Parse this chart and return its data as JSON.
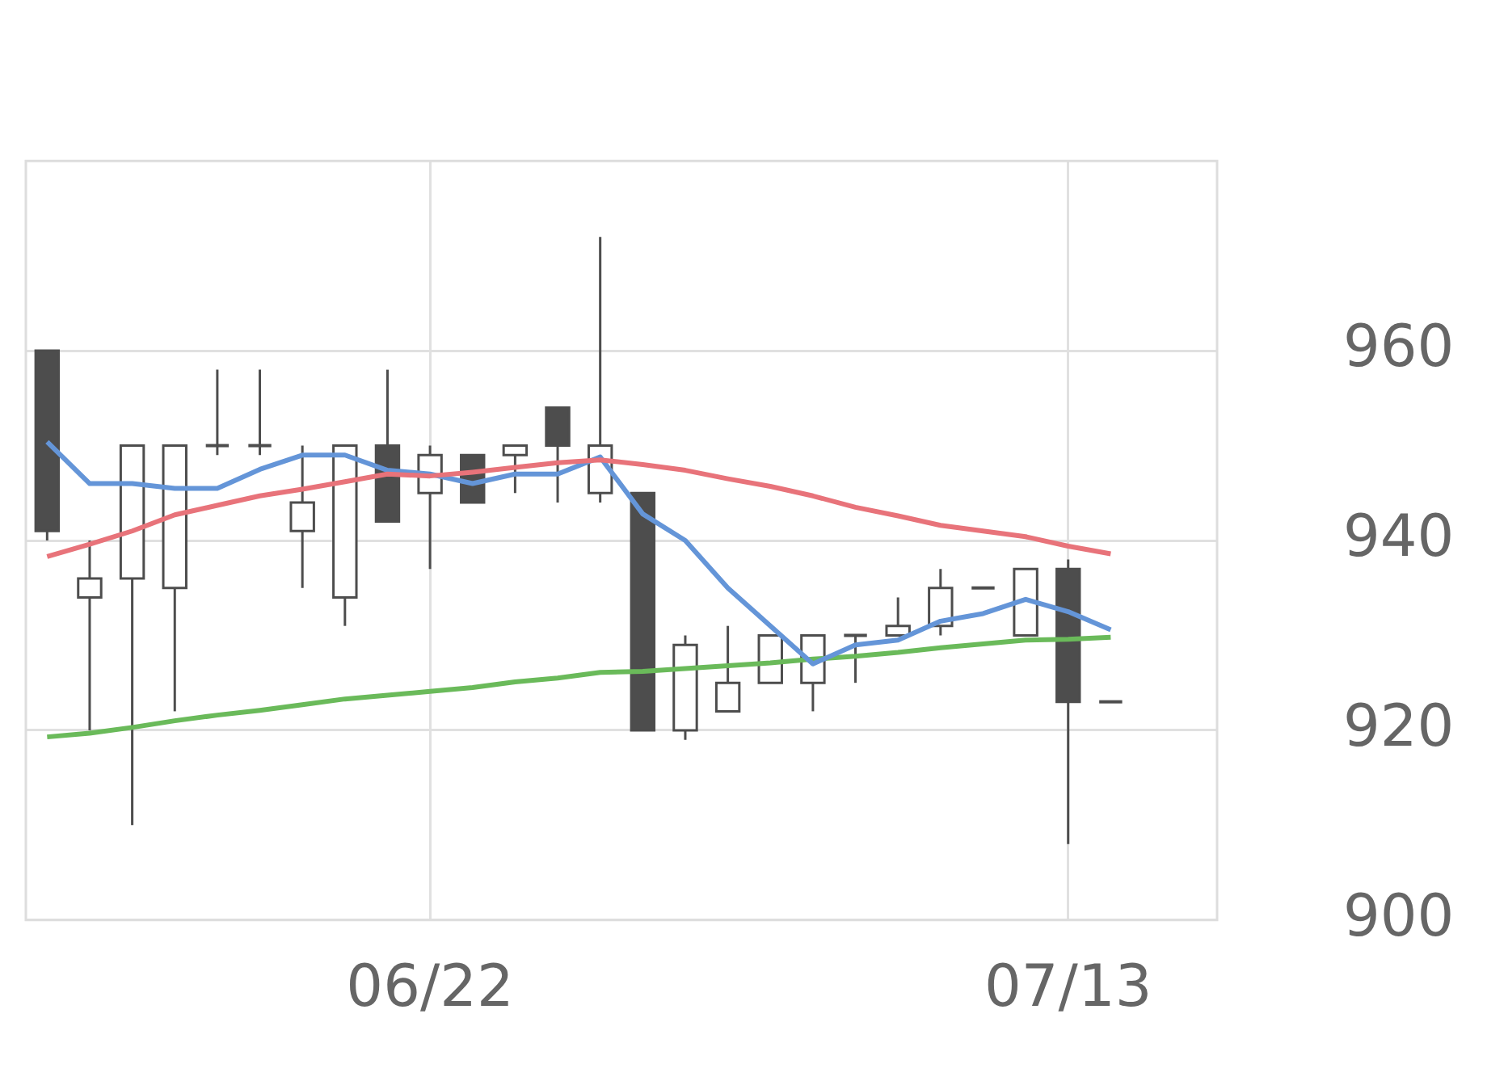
{
  "chart_data": {
    "type": "candlestick",
    "categories": [
      null,
      null,
      null,
      null,
      null,
      null,
      null,
      null,
      null,
      "06/22",
      null,
      null,
      null,
      null,
      null,
      null,
      null,
      null,
      null,
      null,
      null,
      null,
      null,
      null,
      "07/13",
      null,
      null,
      null
    ],
    "ohlc": [
      [
        960,
        960,
        940,
        941
      ],
      [
        934,
        940,
        920,
        936
      ],
      [
        936,
        950,
        910,
        950
      ],
      [
        935,
        950,
        922,
        950
      ],
      [
        950,
        958,
        949,
        950
      ],
      [
        950,
        958,
        949,
        950
      ],
      [
        941,
        950,
        935,
        944
      ],
      [
        934,
        950,
        931,
        950
      ],
      [
        950,
        958,
        942,
        942
      ],
      [
        945,
        950,
        937,
        949
      ],
      [
        949,
        949,
        944,
        944
      ],
      [
        949,
        950,
        945,
        950
      ],
      [
        954,
        954,
        944,
        950
      ],
      [
        945,
        972,
        944,
        950
      ],
      [
        945,
        945,
        920,
        920
      ],
      [
        920,
        930,
        919,
        929
      ],
      [
        922,
        931,
        922,
        925
      ],
      [
        925,
        930,
        925,
        930
      ],
      [
        925,
        930,
        922,
        930
      ],
      [
        930,
        930,
        925,
        930
      ],
      [
        930,
        934,
        930,
        931
      ],
      [
        931,
        937,
        930,
        935
      ],
      [
        935,
        935,
        935,
        935
      ],
      [
        930,
        937,
        930,
        937
      ],
      [
        937,
        938,
        908,
        923
      ],
      [
        923,
        923,
        923,
        923
      ],
      null,
      null
    ],
    "series": [
      {
        "type": "line",
        "color": "#e8737a",
        "values": [
          938.3,
          939.6,
          941,
          942.7,
          943.7,
          944.7,
          945.4,
          946.2,
          947,
          946.8,
          947.2,
          947.7,
          948.2,
          948.5,
          948,
          947.4,
          946.5,
          945.7,
          944.7,
          943.5,
          942.6,
          941.6,
          941,
          940.4,
          939.4,
          938.6,
          null,
          null
        ]
      },
      {
        "type": "line",
        "color": "#6495d8",
        "values": [
          950.4,
          946,
          946,
          945.5,
          945.5,
          947.5,
          949,
          949,
          947.4,
          947,
          946,
          947,
          947,
          948.8,
          942.8,
          940,
          935,
          931,
          927,
          929,
          929.5,
          931.5,
          932.3,
          933.8,
          932.5,
          930.6,
          null,
          null
        ]
      },
      {
        "type": "line",
        "color": "#6aba5a",
        "values": [
          919.3,
          919.7,
          920.3,
          921,
          921.6,
          922.1,
          922.7,
          923.3,
          923.7,
          924.1,
          924.5,
          925.1,
          925.5,
          926.1,
          926.2,
          926.5,
          926.8,
          927.1,
          927.5,
          927.8,
          928.2,
          928.7,
          929.1,
          929.5,
          929.6,
          929.8,
          null,
          null
        ]
      }
    ],
    "ylim": [
      900,
      980
    ],
    "yticks": [
      900,
      920,
      940,
      960
    ],
    "grid": true
  }
}
